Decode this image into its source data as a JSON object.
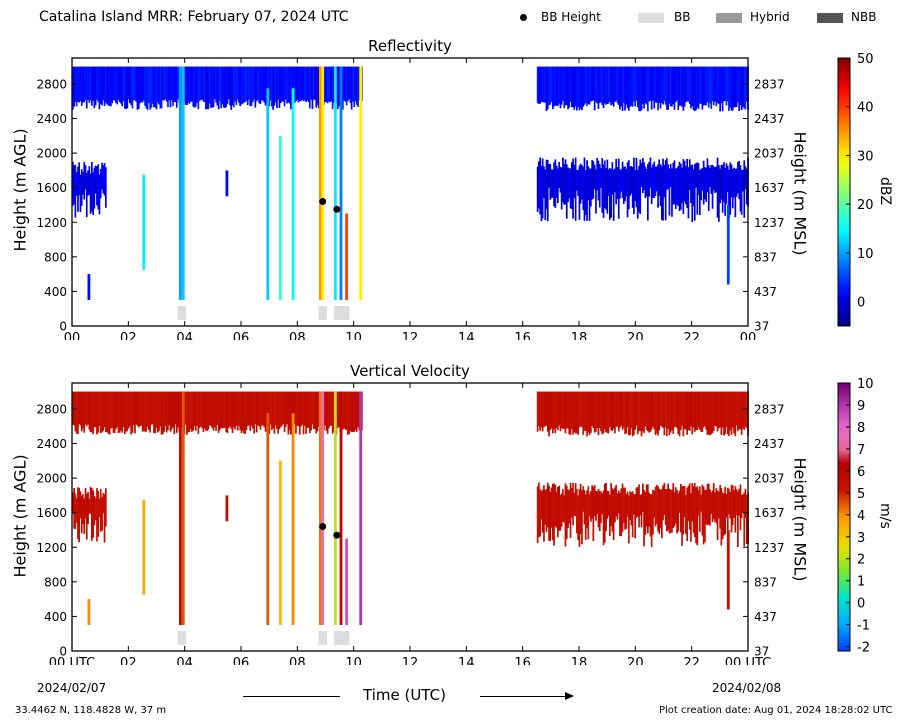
{
  "header": {
    "title": "Catalina Island MRR:  February 07, 2024 UTC",
    "legend": [
      {
        "label": "BB Height",
        "marker": "dot",
        "color": "#000000"
      },
      {
        "label": "BB",
        "marker": "rect",
        "color": "#dddddd"
      },
      {
        "label": "Hybrid",
        "marker": "rect",
        "color": "#999999"
      },
      {
        "label": "NBB",
        "marker": "rect",
        "color": "#555555"
      }
    ]
  },
  "footer": {
    "location": "33.4462 N, 118.4828 W, 37 m",
    "created": "Plot creation date: Aug 01, 2024 18:28:02 UTC",
    "date_start": "2024/02/07",
    "date_end": "2024/02/08",
    "xlabel": "Time (UTC)"
  },
  "chart_data": [
    {
      "type": "heatmap",
      "title": "Reflectivity",
      "ylabel": "Height (m AGL)",
      "ylabel_right": "Height (m MSL)",
      "xlim": [
        0,
        24
      ],
      "ylim": [
        0,
        3100
      ],
      "x_ticks": [
        "00",
        "02",
        "04",
        "06",
        "08",
        "10",
        "12",
        "14",
        "16",
        "18",
        "20",
        "22",
        "00"
      ],
      "y_ticks": [
        0,
        400,
        800,
        1200,
        1600,
        2000,
        2400,
        2800
      ],
      "y_ticks_right": [
        "37",
        "437",
        "837",
        "1237",
        "1637",
        "2037",
        "2437",
        "2837"
      ],
      "colorbar": {
        "label": "dBZ",
        "min": -5,
        "max": 50,
        "ticks": [
          0,
          10,
          20,
          30,
          40,
          50
        ]
      },
      "bb_height_points": [
        {
          "time": 8.9,
          "height": 1440
        },
        {
          "time": 9.4,
          "height": 1350
        }
      ],
      "bb_flags": [
        {
          "start": 3.75,
          "end": 4.05,
          "class": "BB"
        },
        {
          "start": 8.75,
          "end": 9.05,
          "class": "BB"
        },
        {
          "start": 9.3,
          "end": 9.85,
          "class": "BB"
        }
      ],
      "echo_layers": [
        {
          "start": 0.0,
          "end": 10.3,
          "bottom": 2500,
          "top": 3000,
          "value": 2
        },
        {
          "start": 16.5,
          "end": 24.0,
          "bottom": 2480,
          "top": 3000,
          "value": 2
        },
        {
          "start": 16.5,
          "end": 24.0,
          "bottom": 1200,
          "top": 1950,
          "value": 0
        },
        {
          "start": 0.0,
          "end": 1.2,
          "bottom": 1250,
          "top": 1900,
          "value": 0
        }
      ],
      "rain_columns": [
        {
          "time": 0.6,
          "bottom": 300,
          "top": 600,
          "value": 2
        },
        {
          "time": 2.55,
          "bottom": 650,
          "top": 1750,
          "value": 14
        },
        {
          "time": 3.85,
          "bottom": 300,
          "top": 3000,
          "value": 10
        },
        {
          "time": 3.95,
          "bottom": 300,
          "top": 3000,
          "value": 12
        },
        {
          "time": 5.5,
          "bottom": 1500,
          "top": 1800,
          "value": 2
        },
        {
          "time": 6.95,
          "bottom": 300,
          "top": 2750,
          "value": 12
        },
        {
          "time": 7.4,
          "bottom": 300,
          "top": 2200,
          "value": 18
        },
        {
          "time": 7.85,
          "bottom": 300,
          "top": 2750,
          "value": 15
        },
        {
          "time": 8.82,
          "bottom": 300,
          "top": 3000,
          "value": 35
        },
        {
          "time": 8.9,
          "bottom": 300,
          "top": 3000,
          "value": 30
        },
        {
          "time": 9.35,
          "bottom": 300,
          "top": 3000,
          "value": 14
        },
        {
          "time": 9.55,
          "bottom": 300,
          "top": 3000,
          "value": 8
        },
        {
          "time": 9.75,
          "bottom": 300,
          "top": 1300,
          "value": 40
        },
        {
          "time": 10.25,
          "bottom": 300,
          "top": 3000,
          "value": 30
        },
        {
          "time": 23.3,
          "bottom": 480,
          "top": 1400,
          "value": 5
        }
      ]
    },
    {
      "type": "heatmap",
      "title": "Vertical Velocity",
      "ylabel": "Height (m AGL)",
      "ylabel_right": "Height (m MSL)",
      "xlim": [
        0,
        24
      ],
      "ylim": [
        0,
        3100
      ],
      "x_ticks": [
        "00 UTC",
        "02",
        "04",
        "06",
        "08",
        "10",
        "12",
        "14",
        "16",
        "18",
        "20",
        "22",
        "00 UTC"
      ],
      "y_ticks": [
        0,
        400,
        800,
        1200,
        1600,
        2000,
        2400,
        2800
      ],
      "y_ticks_right": [
        "37",
        "437",
        "837",
        "1237",
        "1637",
        "2037",
        "2437",
        "2837"
      ],
      "colorbar": {
        "label": "m/s",
        "min": -2.2,
        "max": 10,
        "ticks": [
          -2,
          -1,
          0,
          1,
          2,
          3,
          4,
          5,
          6,
          7,
          8,
          9,
          10
        ]
      },
      "bb_height_points": [
        {
          "time": 8.9,
          "height": 1440
        },
        {
          "time": 9.4,
          "height": 1340
        }
      ],
      "bb_flags": [
        {
          "start": 3.75,
          "end": 4.05,
          "class": "BB"
        },
        {
          "start": 8.75,
          "end": 9.05,
          "class": "BB"
        },
        {
          "start": 9.3,
          "end": 9.85,
          "class": "BB"
        }
      ],
      "echo_layers": [
        {
          "start": 0.0,
          "end": 10.3,
          "bottom": 2500,
          "top": 3000,
          "value": 5.5
        },
        {
          "start": 16.5,
          "end": 24.0,
          "bottom": 2480,
          "top": 3000,
          "value": 5.5
        },
        {
          "start": 16.5,
          "end": 24.0,
          "bottom": 1200,
          "top": 1950,
          "value": 5.5
        },
        {
          "start": 0.0,
          "end": 1.2,
          "bottom": 1250,
          "top": 1900,
          "value": 5.5
        }
      ],
      "rain_columns": [
        {
          "time": 0.6,
          "bottom": 300,
          "top": 600,
          "value": 4
        },
        {
          "time": 2.55,
          "bottom": 650,
          "top": 1750,
          "value": 3.5
        },
        {
          "time": 3.85,
          "bottom": 300,
          "top": 3000,
          "value": 5.8
        },
        {
          "time": 3.95,
          "bottom": 300,
          "top": 3000,
          "value": 4.5
        },
        {
          "time": 5.5,
          "bottom": 1500,
          "top": 1800,
          "value": 5.5
        },
        {
          "time": 6.95,
          "bottom": 300,
          "top": 2750,
          "value": 4.5
        },
        {
          "time": 7.4,
          "bottom": 300,
          "top": 2200,
          "value": 3.2
        },
        {
          "time": 7.85,
          "bottom": 300,
          "top": 2750,
          "value": 4
        },
        {
          "time": 8.82,
          "bottom": 300,
          "top": 3000,
          "value": 4.2
        },
        {
          "time": 8.9,
          "bottom": 300,
          "top": 3000,
          "value": 7.5
        },
        {
          "time": 9.35,
          "bottom": 300,
          "top": 3000,
          "value": 2
        },
        {
          "time": 9.55,
          "bottom": 300,
          "top": 3000,
          "value": 6
        },
        {
          "time": 9.75,
          "bottom": 300,
          "top": 1300,
          "value": 8.5
        },
        {
          "time": 10.25,
          "bottom": 300,
          "top": 3000,
          "value": 9
        },
        {
          "time": 23.3,
          "bottom": 480,
          "top": 1400,
          "value": 5.5
        }
      ]
    }
  ]
}
